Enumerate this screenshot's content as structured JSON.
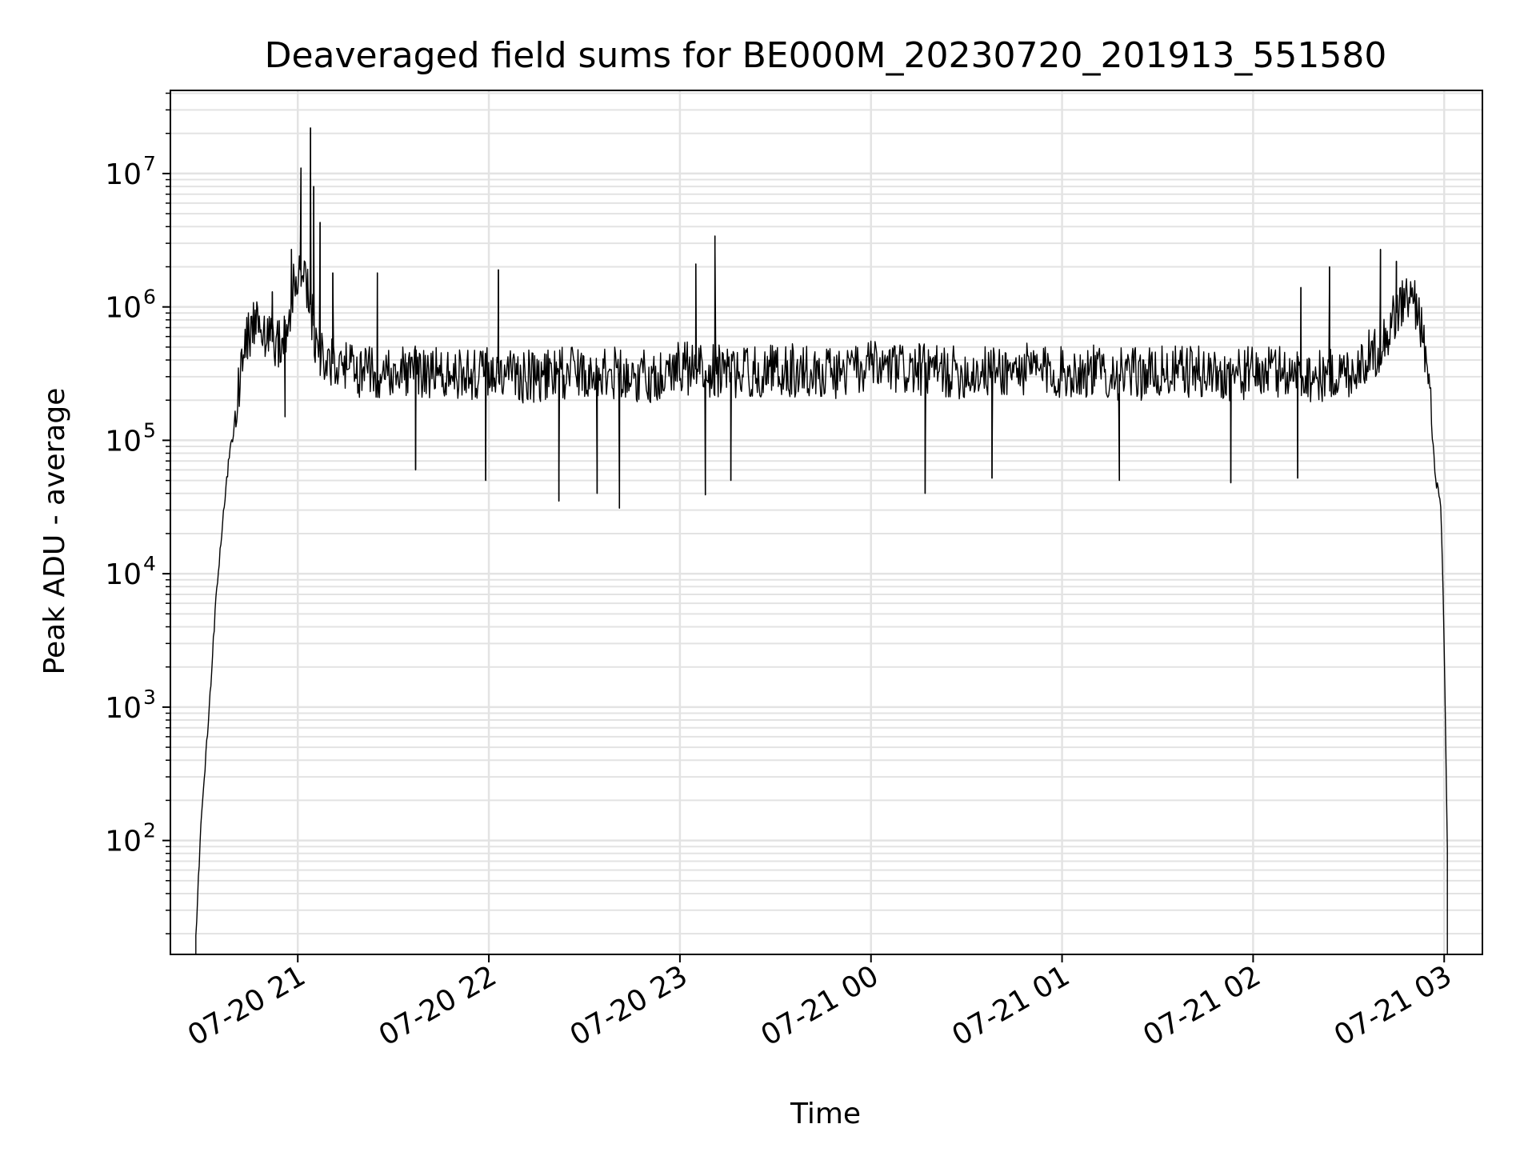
{
  "chart_data": {
    "type": "line",
    "title": "Deaveraged field sums for BE000M_20230720_201913_551580",
    "xlabel": "Time",
    "ylabel": "Peak ADU - average",
    "x_ticks": [
      "07-20 21",
      "07-20 22",
      "07-20 23",
      "07-21 00",
      "07-21 01",
      "07-21 02",
      "07-21 03"
    ],
    "y_tick_bases": [
      "10",
      "10",
      "10",
      "10",
      "10",
      "10"
    ],
    "y_tick_exponents": [
      "2",
      "3",
      "4",
      "5",
      "6",
      "7"
    ],
    "x_scale": "time",
    "xlim": [
      "2023-07-20 20:20",
      "2023-07-21 03:12"
    ],
    "y_scale": "log",
    "ylim": [
      14,
      42000000
    ],
    "grid": true,
    "minor_grid": true,
    "line_color": "#000000",
    "grid_color": "#e3e3e3",
    "series": [
      {
        "x": [
          "2023-07-20 20:28",
          "2023-07-20 20:30",
          "2023-07-20 20:32",
          "2023-07-20 20:34",
          "2023-07-20 20:36",
          "2023-07-20 20:38",
          "2023-07-20 20:40",
          "2023-07-20 20:42",
          "2023-07-20 20:44",
          "2023-07-20 20:47",
          "2023-07-20 20:50",
          "2023-07-20 20:53",
          "2023-07-20 20:56",
          "2023-07-20 21:00",
          "2023-07-20 21:03",
          "2023-07-20 21:06",
          "2023-07-20 21:10",
          "2023-07-20 21:15",
          "2023-07-20 21:20",
          "2023-07-20 21:30",
          "2023-07-20 21:40",
          "2023-07-20 21:50",
          "2023-07-20 22:00",
          "2023-07-20 22:10",
          "2023-07-20 22:20",
          "2023-07-20 22:30",
          "2023-07-20 22:40",
          "2023-07-20 22:50",
          "2023-07-20 23:00",
          "2023-07-20 23:05",
          "2023-07-20 23:10",
          "2023-07-20 23:20",
          "2023-07-20 23:30",
          "2023-07-20 23:40",
          "2023-07-20 23:50",
          "2023-07-21 00:00",
          "2023-07-21 00:10",
          "2023-07-21 00:20",
          "2023-07-21 00:30",
          "2023-07-21 00:40",
          "2023-07-21 00:50",
          "2023-07-21 01:00",
          "2023-07-21 01:10",
          "2023-07-21 01:20",
          "2023-07-21 01:30",
          "2023-07-21 01:40",
          "2023-07-21 01:50",
          "2023-07-21 02:00",
          "2023-07-21 02:10",
          "2023-07-21 02:20",
          "2023-07-21 02:30",
          "2023-07-21 02:35",
          "2023-07-21 02:40",
          "2023-07-21 02:45",
          "2023-07-21 02:48",
          "2023-07-21 02:52",
          "2023-07-21 02:55",
          "2023-07-21 02:57",
          "2023-07-21 02:59",
          "2023-07-21 03:00",
          "2023-07-21 03:01"
        ],
        "y": [
          20,
          200,
          800,
          5000,
          20000,
          60000,
          130000,
          300000,
          550000,
          800000,
          650000,
          500000,
          600000,
          2000000,
          1500000,
          500000,
          380000,
          350000,
          320000,
          340000,
          330000,
          310000,
          320000,
          300000,
          310000,
          330000,
          320000,
          300000,
          350000,
          340000,
          330000,
          320000,
          340000,
          330000,
          320000,
          350000,
          340000,
          330000,
          320000,
          330000,
          340000,
          320000,
          330000,
          310000,
          320000,
          330000,
          310000,
          320000,
          330000,
          300000,
          320000,
          400000,
          500000,
          900000,
          1200000,
          1000000,
          300000,
          60000,
          30000,
          3000,
          80
        ]
      }
    ],
    "spikes": [
      {
        "x": "2023-07-20 20:52",
        "y": 1300000
      },
      {
        "x": "2023-07-20 20:58",
        "y": 2700000
      },
      {
        "x": "2023-07-20 21:01",
        "y": 11000000
      },
      {
        "x": "2023-07-20 21:04",
        "y": 22000000
      },
      {
        "x": "2023-07-20 21:05",
        "y": 8000000
      },
      {
        "x": "2023-07-20 21:07",
        "y": 4300000
      },
      {
        "x": "2023-07-20 21:11",
        "y": 1800000
      },
      {
        "x": "2023-07-20 21:25",
        "y": 1800000
      },
      {
        "x": "2023-07-20 22:03",
        "y": 1900000
      },
      {
        "x": "2023-07-20 23:05",
        "y": 2100000
      },
      {
        "x": "2023-07-20 23:11",
        "y": 3400000
      },
      {
        "x": "2023-07-21 02:15",
        "y": 1400000
      },
      {
        "x": "2023-07-21 02:24",
        "y": 2000000
      },
      {
        "x": "2023-07-21 02:40",
        "y": 2700000
      },
      {
        "x": "2023-07-21 02:45",
        "y": 2200000
      }
    ],
    "dips": [
      {
        "x": "2023-07-20 20:56",
        "y": 150000
      },
      {
        "x": "2023-07-20 21:37",
        "y": 60000
      },
      {
        "x": "2023-07-20 21:59",
        "y": 50000
      },
      {
        "x": "2023-07-20 22:22",
        "y": 35000
      },
      {
        "x": "2023-07-20 22:34",
        "y": 40000
      },
      {
        "x": "2023-07-20 22:41",
        "y": 31000
      },
      {
        "x": "2023-07-20 23:08",
        "y": 39000
      },
      {
        "x": "2023-07-20 23:16",
        "y": 50000
      },
      {
        "x": "2023-07-21 00:17",
        "y": 40000
      },
      {
        "x": "2023-07-21 00:38",
        "y": 52000
      },
      {
        "x": "2023-07-21 01:18",
        "y": 50000
      },
      {
        "x": "2023-07-21 01:53",
        "y": 48000
      },
      {
        "x": "2023-07-21 02:14",
        "y": 52000
      }
    ]
  }
}
